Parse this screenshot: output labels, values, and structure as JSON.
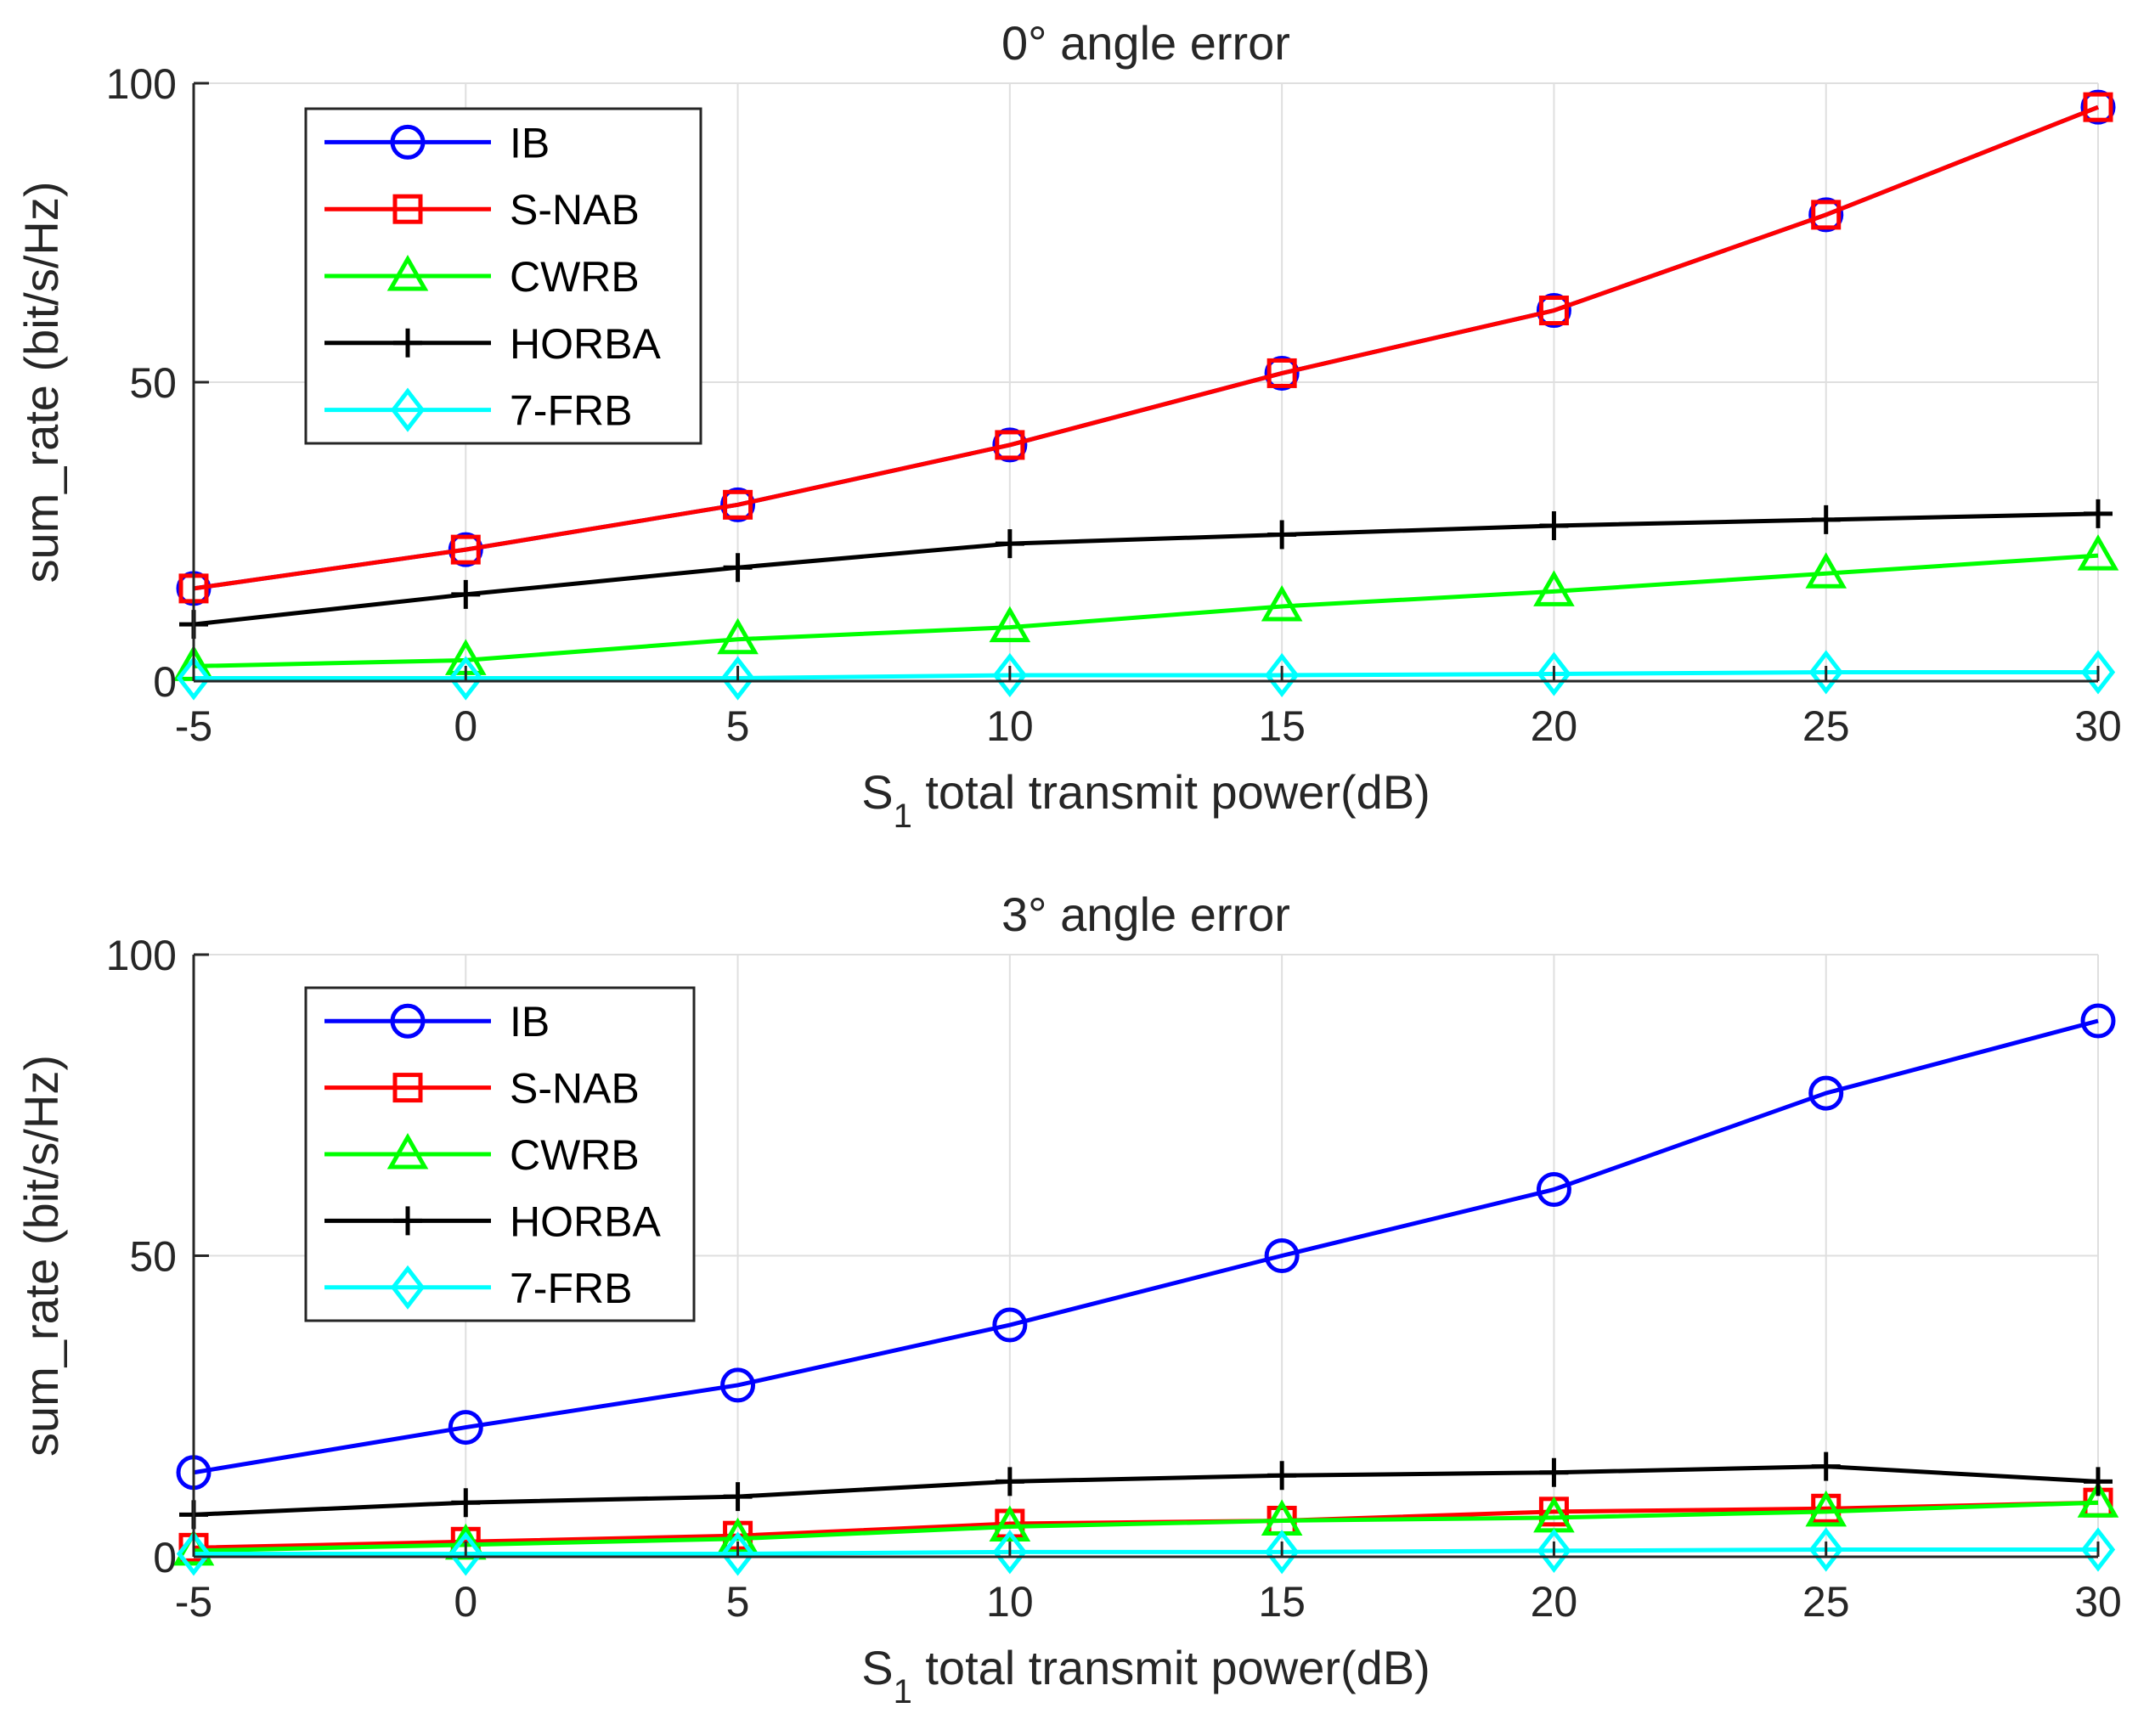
{
  "chart_data": [
    {
      "type": "line",
      "title": "0° angle error",
      "xlabel_main": "S",
      "xlabel_sub": "1",
      "xlabel_rest": " total transmit power(dB)",
      "ylabel": "sum_rate (bit/s/Hz)",
      "x": [
        -5,
        0,
        5,
        10,
        15,
        20,
        25,
        30
      ],
      "xlim": [
        -5,
        30
      ],
      "ylim": [
        0,
        100
      ],
      "xticks": [
        "-5",
        "0",
        "5",
        "10",
        "15",
        "20",
        "25",
        "30"
      ],
      "yticks": [
        "0",
        "50",
        "100"
      ],
      "grid": true,
      "legend_position": "top-left",
      "series": [
        {
          "name": "IB",
          "color": "#0000ff",
          "marker": "circle",
          "values": [
            15.5,
            22.0,
            29.5,
            39.5,
            51.5,
            62.0,
            78.0,
            96.0
          ]
        },
        {
          "name": "S-NAB",
          "color": "#ff0000",
          "marker": "square",
          "values": [
            15.5,
            22.0,
            29.5,
            39.5,
            51.5,
            62.0,
            78.0,
            96.0
          ]
        },
        {
          "name": "CWRB",
          "color": "#00ff00",
          "marker": "triangle",
          "values": [
            2.5,
            3.5,
            7.0,
            9.0,
            12.5,
            15.0,
            18.0,
            21.0
          ]
        },
        {
          "name": "HORBA",
          "color": "#000000",
          "marker": "plus",
          "values": [
            9.5,
            14.5,
            19.0,
            23.0,
            24.5,
            26.0,
            27.0,
            28.0
          ]
        },
        {
          "name": "7-FRB",
          "color": "#00ffff",
          "marker": "diamond",
          "values": [
            0.5,
            0.5,
            0.5,
            1.0,
            1.0,
            1.2,
            1.5,
            1.5
          ]
        }
      ]
    },
    {
      "type": "line",
      "title": "3° angle error",
      "xlabel_main": "S",
      "xlabel_sub": "1",
      "xlabel_rest": " total transmit power(dB)",
      "ylabel": "sum_rate (bit/s/Hz)",
      "x": [
        -5,
        0,
        5,
        10,
        15,
        20,
        25,
        30
      ],
      "xlim": [
        -5,
        30
      ],
      "ylim": [
        0,
        100
      ],
      "xticks": [
        "-5",
        "0",
        "5",
        "10",
        "15",
        "20",
        "25",
        "30"
      ],
      "yticks": [
        "0",
        "50",
        "100"
      ],
      "grid": true,
      "legend_position": "top-left",
      "series": [
        {
          "name": "IB",
          "color": "#0000ff",
          "marker": "circle",
          "values": [
            14.0,
            21.5,
            28.5,
            38.5,
            50.0,
            61.0,
            77.0,
            89.0
          ]
        },
        {
          "name": "S-NAB",
          "color": "#ff0000",
          "marker": "square",
          "values": [
            1.5,
            2.5,
            3.5,
            5.5,
            6.0,
            7.5,
            8.0,
            9.0
          ]
        },
        {
          "name": "CWRB",
          "color": "#00ff00",
          "marker": "triangle",
          "values": [
            1.0,
            2.0,
            3.0,
            5.0,
            6.0,
            6.5,
            7.5,
            9.0
          ]
        },
        {
          "name": "HORBA",
          "color": "#000000",
          "marker": "plus",
          "values": [
            7.0,
            9.0,
            10.0,
            12.5,
            13.5,
            14.0,
            15.0,
            12.5
          ]
        },
        {
          "name": "7-FRB",
          "color": "#00ffff",
          "marker": "diamond",
          "values": [
            0.5,
            0.5,
            0.5,
            0.8,
            0.8,
            1.0,
            1.2,
            1.2
          ]
        }
      ]
    }
  ]
}
